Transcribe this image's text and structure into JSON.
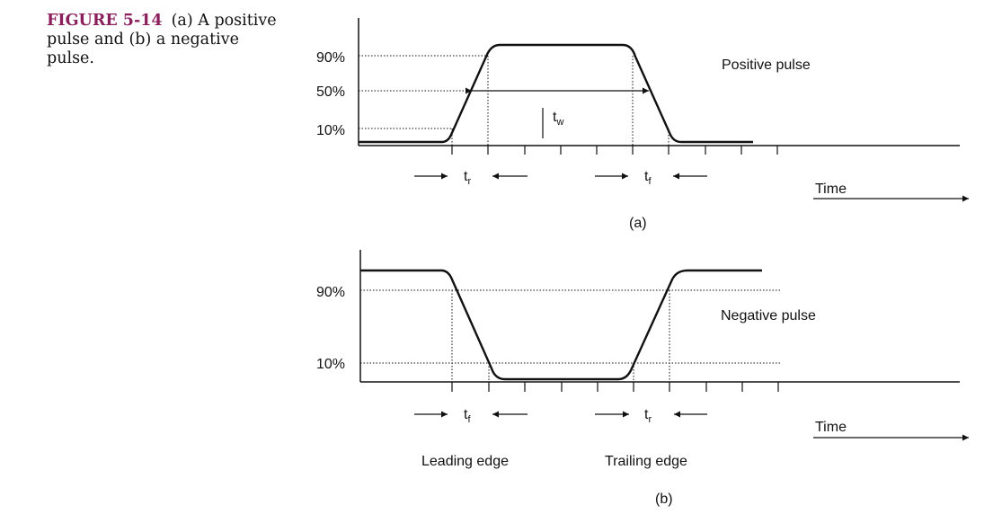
{
  "caption": {
    "label": "FIGURE 5-14",
    "text": "(a) A positive pulse and (b) a negative pulse."
  },
  "panel_a": {
    "title": "Positive pulse",
    "sublabel": "(a)",
    "levels": [
      "90%",
      "50%",
      "10%"
    ],
    "rise_label": "t",
    "rise_sub": "r",
    "fall_label": "t",
    "fall_sub": "f",
    "width_label": "t",
    "width_sub": "w",
    "time_label": "Time"
  },
  "panel_b": {
    "title": "Negative pulse",
    "sublabel": "(b)",
    "levels": [
      "90%",
      "10%"
    ],
    "fall_label": "t",
    "fall_sub": "f",
    "rise_label": "t",
    "rise_sub": "r",
    "leading_edge": "Leading edge",
    "trailing_edge": "Trailing edge",
    "time_label": "Time"
  }
}
